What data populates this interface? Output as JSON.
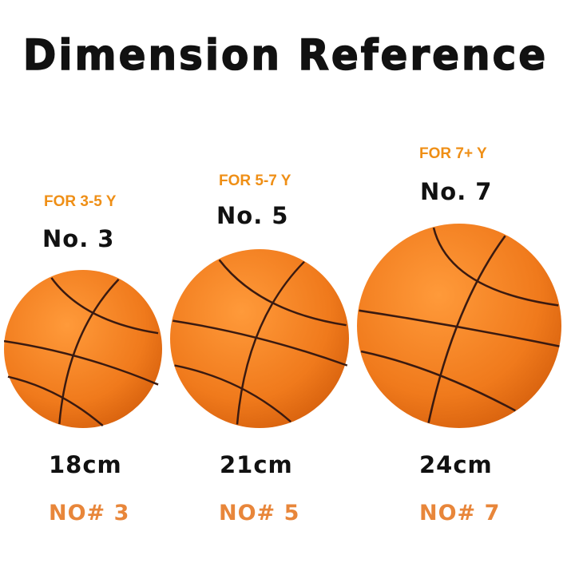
{
  "title": "Dimension Reference",
  "colors": {
    "age_text": "#ef8f16",
    "code_text": "#e8863a",
    "ball": "#f07a1c"
  },
  "balls": [
    {
      "age": "FOR 3-5 Y",
      "number": "No. 3",
      "size": "18cm",
      "code": "NO# 3"
    },
    {
      "age": "FOR 5-7 Y",
      "number": "No. 5",
      "size": "21cm",
      "code": "NO# 5"
    },
    {
      "age": "FOR 7+ Y",
      "number": "No. 7",
      "size": "24cm",
      "code": "NO# 7"
    }
  ]
}
